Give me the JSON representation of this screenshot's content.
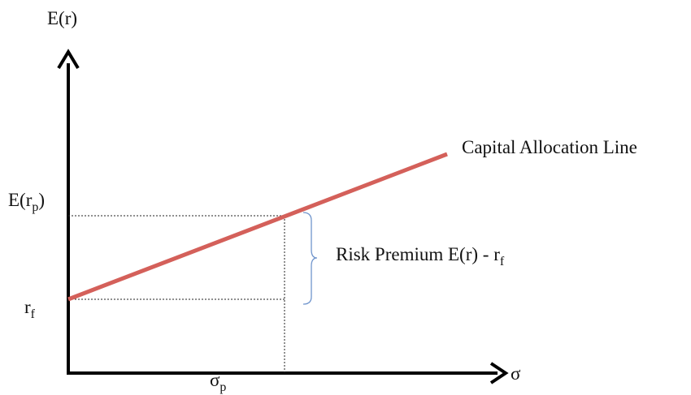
{
  "y_axis": {
    "label": "E(r)"
  },
  "x_axis": {
    "label": "σ"
  },
  "line_label": "Capital Allocation Line",
  "portfolio_return": {
    "main": "E(r",
    "sub": "p",
    "tail": ")"
  },
  "risk_free": {
    "main": "r",
    "sub": "f"
  },
  "portfolio_risk": {
    "main": "σ",
    "sub": "p"
  },
  "risk_premium": {
    "main": "Risk Premium E(r) - r",
    "sub": "f"
  }
}
